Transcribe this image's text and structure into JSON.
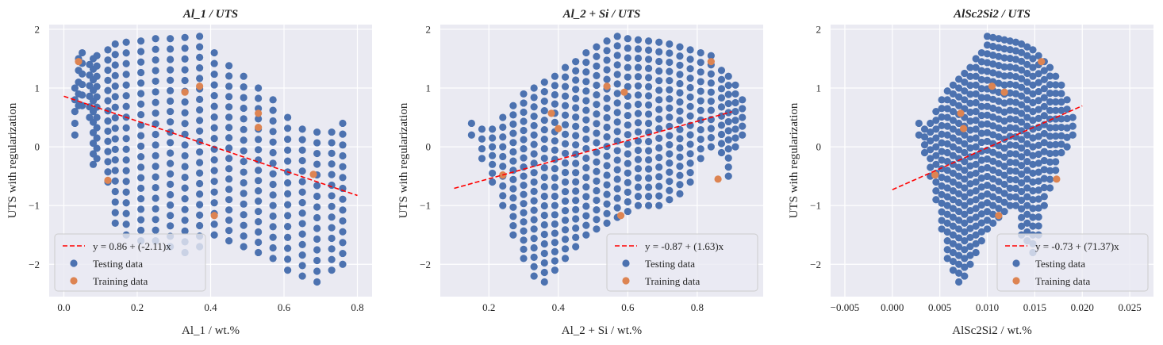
{
  "colors": {
    "plot_bg": "#eaeaf2",
    "grid": "#ffffff",
    "testing": "#4c72b0",
    "training": "#dd8452",
    "fit_line": "#ff0000",
    "text": "#262626"
  },
  "chart_data": [
    {
      "type": "scatter",
      "title": "Al_1 / UTS",
      "xlabel": "Al_1 / wt.%",
      "ylabel": "UTS with regularization",
      "xlim": [
        -0.04,
        0.84
      ],
      "ylim": [
        -2.55,
        2.08
      ],
      "xticks": [
        0.0,
        0.2,
        0.4,
        0.6,
        0.8
      ],
      "xtick_labels": [
        "0.0",
        "0.2",
        "0.4",
        "0.6",
        "0.8"
      ],
      "yticks": [
        -2,
        -1,
        0,
        1,
        2
      ],
      "ytick_labels": [
        "−2",
        "−1",
        "0",
        "1",
        "2"
      ],
      "grid": true,
      "legend_position": "lower-left",
      "fit": {
        "label": "y = 0.86 + (-2.11)x",
        "intercept": 0.86,
        "slope": -2.11,
        "x_range": [
          0.0,
          0.8
        ]
      },
      "testing": {
        "name": "Testing data",
        "x_columns": [
          0.03,
          0.04,
          0.05,
          0.07,
          0.08,
          0.09,
          0.12,
          0.14,
          0.17,
          0.21,
          0.25,
          0.29,
          0.33,
          0.37,
          0.41,
          0.45,
          0.49,
          0.53,
          0.57,
          0.61,
          0.65,
          0.69,
          0.73,
          0.76
        ],
        "y_top": [
          1.0,
          1.5,
          1.6,
          1.4,
          1.5,
          1.55,
          1.65,
          1.75,
          1.78,
          1.8,
          1.84,
          1.84,
          1.86,
          1.88,
          1.6,
          1.38,
          1.2,
          1.0,
          0.8,
          0.5,
          0.3,
          0.25,
          0.25,
          0.4
        ],
        "y_bottom": [
          0.2,
          0.7,
          0.7,
          0.5,
          -0.3,
          -0.2,
          -0.6,
          -1.3,
          -1.5,
          -1.6,
          -1.6,
          -1.7,
          -1.8,
          -1.7,
          -1.5,
          -1.6,
          -1.7,
          -1.8,
          -1.9,
          -2.1,
          -2.2,
          -2.3,
          -2.1,
          -2.0
        ],
        "step": 0.18
      },
      "training": {
        "name": "Training data",
        "points": [
          [
            0.04,
            1.45
          ],
          [
            0.12,
            -0.57
          ],
          [
            0.33,
            0.93
          ],
          [
            0.37,
            1.03
          ],
          [
            0.41,
            -1.17
          ],
          [
            0.53,
            0.57
          ],
          [
            0.53,
            0.33
          ],
          [
            0.68,
            -0.47
          ]
        ]
      }
    },
    {
      "type": "scatter",
      "title": "Al_2 + Si / UTS",
      "xlabel": "Al_2 + Si / wt.%",
      "ylabel": "UTS with regularization",
      "xlim": [
        0.06,
        0.99
      ],
      "ylim": [
        -2.55,
        2.08
      ],
      "xticks": [
        0.2,
        0.4,
        0.6,
        0.8
      ],
      "xtick_labels": [
        "0.2",
        "0.4",
        "0.6",
        "0.8"
      ],
      "yticks": [
        -2,
        -1,
        0,
        1,
        2
      ],
      "ytick_labels": [
        "−2",
        "−1",
        "0",
        "1",
        "2"
      ],
      "grid": true,
      "legend_position": "lower-right",
      "fit": {
        "label": "y = -0.87 + (1.63)x",
        "intercept": -0.87,
        "slope": 1.63,
        "x_range": [
          0.1,
          0.9
        ]
      },
      "testing": {
        "name": "Testing data",
        "x_columns": [
          0.15,
          0.18,
          0.21,
          0.24,
          0.27,
          0.3,
          0.33,
          0.36,
          0.39,
          0.42,
          0.45,
          0.48,
          0.51,
          0.54,
          0.57,
          0.6,
          0.63,
          0.66,
          0.69,
          0.72,
          0.75,
          0.78,
          0.81,
          0.84,
          0.87,
          0.89,
          0.91,
          0.93
        ],
        "y_top": [
          0.4,
          0.3,
          0.3,
          0.5,
          0.7,
          0.9,
          1.0,
          1.1,
          1.2,
          1.35,
          1.45,
          1.6,
          1.7,
          1.8,
          1.88,
          1.84,
          1.82,
          1.8,
          1.78,
          1.75,
          1.7,
          1.65,
          1.6,
          1.55,
          1.3,
          1.2,
          1.05,
          0.8
        ],
        "y_bottom": [
          0.2,
          -0.2,
          -0.6,
          -1.0,
          -1.5,
          -1.9,
          -2.2,
          -2.3,
          -2.1,
          -1.9,
          -1.7,
          -1.5,
          -1.4,
          -1.3,
          -1.2,
          -1.1,
          -1.0,
          -1.0,
          -1.0,
          -0.9,
          -0.8,
          -0.6,
          -0.2,
          0.0,
          -0.1,
          -0.5,
          0.0,
          0.2
        ],
        "step": 0.16
      },
      "training": {
        "name": "Training data",
        "points": [
          [
            0.24,
            -0.48
          ],
          [
            0.38,
            0.57
          ],
          [
            0.4,
            0.31
          ],
          [
            0.54,
            1.03
          ],
          [
            0.58,
            -1.17
          ],
          [
            0.59,
            0.93
          ],
          [
            0.84,
            1.45
          ],
          [
            0.86,
            -0.55
          ]
        ]
      }
    },
    {
      "type": "scatter",
      "title": "AlSc2Si2 / UTS",
      "xlabel": "AlSc2Si2 / wt.%",
      "ylabel": "UTS with regularization",
      "xlim": [
        -0.0065,
        0.0275
      ],
      "ylim": [
        -2.55,
        2.08
      ],
      "xticks": [
        -0.005,
        0.0,
        0.005,
        0.01,
        0.015,
        0.02,
        0.025
      ],
      "xtick_labels": [
        "−0.005",
        "0.000",
        "0.005",
        "0.010",
        "0.015",
        "0.020",
        "0.025"
      ],
      "yticks": [
        -2,
        -1,
        0,
        1,
        2
      ],
      "ytick_labels": [
        "−2",
        "−1",
        "0",
        "1",
        "2"
      ],
      "grid": true,
      "legend_position": "lower-right",
      "fit": {
        "label": "y = -0.73 + (71.37)x",
        "intercept": -0.73,
        "slope": 71.37,
        "x_range": [
          0.0,
          0.02
        ]
      },
      "testing": {
        "name": "Testing data",
        "x_columns": [
          0.0028,
          0.0034,
          0.004,
          0.0046,
          0.0052,
          0.0058,
          0.0064,
          0.007,
          0.0076,
          0.0082,
          0.0088,
          0.0094,
          0.01,
          0.0106,
          0.0112,
          0.0118,
          0.0124,
          0.013,
          0.0136,
          0.0142,
          0.0148,
          0.0154,
          0.016,
          0.0166,
          0.0172,
          0.0178,
          0.0184,
          0.019
        ],
        "y_top": [
          0.4,
          0.3,
          0.4,
          0.6,
          0.8,
          0.95,
          1.05,
          1.15,
          1.25,
          1.35,
          1.5,
          1.6,
          1.88,
          1.86,
          1.84,
          1.82,
          1.8,
          1.78,
          1.75,
          1.7,
          1.65,
          1.55,
          1.45,
          1.35,
          1.2,
          1.05,
          0.8,
          0.5
        ],
        "y_bottom": [
          0.2,
          -0.1,
          -0.5,
          -0.9,
          -1.4,
          -1.9,
          -2.1,
          -2.3,
          -2.2,
          -2.0,
          -1.8,
          -1.6,
          -1.4,
          -1.3,
          -1.2,
          -1.1,
          -1.0,
          -1.0,
          -1.5,
          -1.6,
          -1.8,
          -1.5,
          -1.0,
          -0.7,
          -0.4,
          -0.1,
          0.0,
          0.2
        ],
        "step": 0.15
      },
      "training": {
        "name": "Training data",
        "points": [
          [
            0.0045,
            -0.48
          ],
          [
            0.0072,
            0.57
          ],
          [
            0.0075,
            0.31
          ],
          [
            0.0105,
            1.03
          ],
          [
            0.0112,
            -1.17
          ],
          [
            0.0118,
            0.93
          ],
          [
            0.0157,
            1.45
          ],
          [
            0.0173,
            -0.55
          ]
        ]
      }
    }
  ]
}
